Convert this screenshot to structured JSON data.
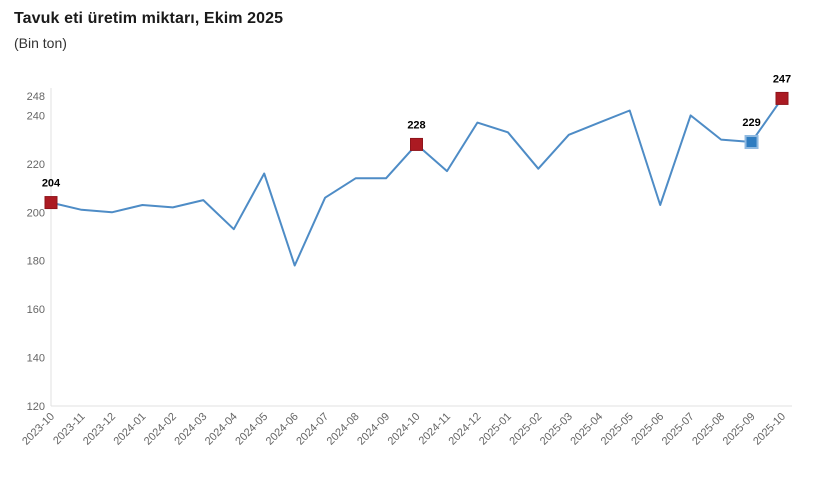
{
  "chart_data": {
    "type": "line",
    "title": "Tavuk eti üretim miktarı, Ekim 2025",
    "subtitle": "(Bin ton)",
    "categories": [
      "2023-10",
      "2023-11",
      "2023-12",
      "2024-01",
      "2024-02",
      "2024-03",
      "2024-04",
      "2024-05",
      "2024-06",
      "2024-07",
      "2024-08",
      "2024-09",
      "2024-10",
      "2024-11",
      "2024-12",
      "2025-01",
      "2025-02",
      "2025-03",
      "2025-04",
      "2025-05",
      "2025-06",
      "2025-07",
      "2025-08",
      "2025-09",
      "2025-10"
    ],
    "values": [
      204,
      201,
      200,
      203,
      202,
      205,
      193,
      216,
      178,
      206,
      214,
      214,
      228,
      217,
      237,
      233,
      218,
      232,
      237,
      242,
      203,
      240,
      230,
      229,
      247
    ],
    "labeled_points": [
      {
        "index": 0,
        "label": "204",
        "marker": "red"
      },
      {
        "index": 12,
        "label": "228",
        "marker": "red"
      },
      {
        "index": 23,
        "label": "229",
        "marker": "blue"
      },
      {
        "index": 24,
        "label": "247",
        "marker": "red"
      }
    ],
    "yticks": [
      120,
      140,
      160,
      180,
      200,
      220,
      240,
      248
    ],
    "ylim": [
      120,
      248
    ],
    "x_label_rotation": -45,
    "grid": false,
    "legend": "none",
    "colors": {
      "line": "#4e8cc6",
      "marker_red": "#ab1a22",
      "marker_red_border": "#8f141b",
      "marker_blue": "#2e7cc0",
      "marker_blue_border": "#8fb9e0",
      "axis_line": "#e0e0e0",
      "tick_text": "#666666",
      "point_label_text": "#000000"
    }
  }
}
